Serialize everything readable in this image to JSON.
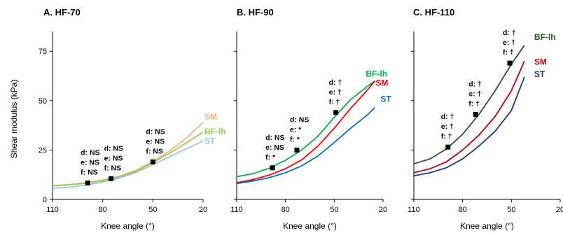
{
  "chart_data": [
    {
      "type": "line",
      "title": "A. HF-70",
      "xlabel": "Knee angle (°)",
      "ylabel": "Shear modulus (kPa)",
      "xlim": [
        110,
        20
      ],
      "ylim": [
        0,
        85
      ],
      "xticks": [
        110,
        80,
        50,
        20
      ],
      "yticks": [
        0,
        25,
        50,
        75
      ],
      "series": [
        {
          "name": "SM",
          "color": "#f4b183",
          "x": [
            110,
            100,
            90,
            80,
            70,
            60,
            50,
            40,
            30,
            20
          ],
          "y": [
            7.0,
            7.5,
            8.4,
            9.8,
            11.8,
            14.8,
            19.2,
            24.5,
            31.0,
            39.0
          ]
        },
        {
          "name": "BF-lh",
          "color": "#92d050",
          "x": [
            110,
            100,
            90,
            80,
            70,
            60,
            50,
            40,
            30,
            20
          ],
          "y": [
            6.8,
            7.4,
            8.2,
            9.5,
            11.4,
            14.2,
            18.6,
            23.4,
            28.6,
            34.0
          ]
        },
        {
          "name": "ST",
          "color": "#9dc3e6",
          "x": [
            110,
            100,
            90,
            80,
            70,
            60,
            50,
            40,
            30,
            20
          ],
          "y": [
            5.5,
            6.2,
            7.3,
            8.8,
            10.8,
            13.6,
            17.6,
            21.6,
            25.6,
            29.5
          ]
        }
      ],
      "markers": [
        {
          "x": 89,
          "y": 8.3,
          "stats": [
            "d: NS",
            "e: NS",
            "f: NS"
          ]
        },
        {
          "x": 75,
          "y": 10.5,
          "stats": [
            "d: NS",
            "e: NS",
            "f: NS"
          ]
        },
        {
          "x": 50,
          "y": 19.0,
          "stats": [
            "d: NS",
            "e: NS",
            "f: NS"
          ]
        }
      ]
    },
    {
      "type": "line",
      "title": "B. HF-90",
      "xlabel": "Knee angle (°)",
      "ylabel": "",
      "xlim": [
        110,
        20
      ],
      "ylim": [
        0,
        85
      ],
      "xticks": [
        110,
        80,
        50,
        20
      ],
      "yticks": [
        0,
        25,
        50,
        75
      ],
      "series": [
        {
          "name": "BF-lh",
          "color": "#00b050",
          "x": [
            110,
            100,
            90,
            80,
            70,
            60,
            50,
            40,
            30,
            25
          ],
          "y": [
            11.5,
            13.0,
            15.8,
            19.8,
            25.0,
            32.0,
            41.5,
            50.5,
            57.0,
            60.0
          ]
        },
        {
          "name": "SM",
          "color": "#ff0000",
          "x": [
            110,
            100,
            90,
            80,
            70,
            60,
            50,
            40,
            30,
            25
          ],
          "y": [
            8.5,
            10.0,
            12.3,
            15.5,
            20.0,
            27.0,
            36.0,
            46.0,
            55.0,
            60.0
          ]
        },
        {
          "name": "ST",
          "color": "#0070c0",
          "x": [
            110,
            100,
            90,
            80,
            70,
            60,
            50,
            40,
            30,
            25
          ],
          "y": [
            8.0,
            9.3,
            11.0,
            13.5,
            17.0,
            22.0,
            28.8,
            36.0,
            42.5,
            46.5
          ]
        }
      ],
      "markers": [
        {
          "x": 88,
          "y": 16.0,
          "stats": [
            "d: NS",
            "e: NS",
            "f: *"
          ]
        },
        {
          "x": 73,
          "y": 25.0,
          "stats": [
            "d: NS",
            "e: *",
            "f: *"
          ]
        },
        {
          "x": 49,
          "y": 44.0,
          "stats": [
            "d: †",
            "e: †",
            "f: †"
          ]
        }
      ]
    },
    {
      "type": "line",
      "title": "C. HF-110",
      "xlabel": "Knee angle (°)",
      "ylabel": "",
      "xlim": [
        110,
        20
      ],
      "ylim": [
        0,
        85
      ],
      "xticks": [
        110,
        80,
        50,
        20
      ],
      "yticks": [
        0,
        25,
        50,
        75
      ],
      "series": [
        {
          "name": "BF-lh",
          "color": "#1e5b1e",
          "x": [
            110,
            100,
            90,
            80,
            70,
            60,
            50,
            42
          ],
          "y": [
            18.0,
            20.5,
            25.5,
            33.0,
            43.0,
            55.0,
            68.5,
            78.0
          ]
        },
        {
          "name": "SM",
          "color": "#c00000",
          "x": [
            110,
            100,
            90,
            80,
            70,
            60,
            50,
            42
          ],
          "y": [
            13.5,
            15.5,
            19.0,
            25.0,
            32.5,
            42.0,
            55.0,
            70.0
          ]
        },
        {
          "name": "ST",
          "color": "#1f3a7a",
          "x": [
            110,
            100,
            90,
            80,
            70,
            60,
            50,
            42
          ],
          "y": [
            12.0,
            13.5,
            16.0,
            20.5,
            27.0,
            34.5,
            45.0,
            62.0
          ]
        }
      ],
      "markers": [
        {
          "x": 89,
          "y": 26.5,
          "stats": [
            "d: †",
            "e: †",
            "f: †"
          ]
        },
        {
          "x": 72,
          "y": 43.0,
          "stats": [
            "d: †",
            "e: †",
            "f: †"
          ]
        },
        {
          "x": 51,
          "y": 69.0,
          "stats": [
            "d: †",
            "e: †",
            "f: †"
          ]
        }
      ]
    }
  ]
}
